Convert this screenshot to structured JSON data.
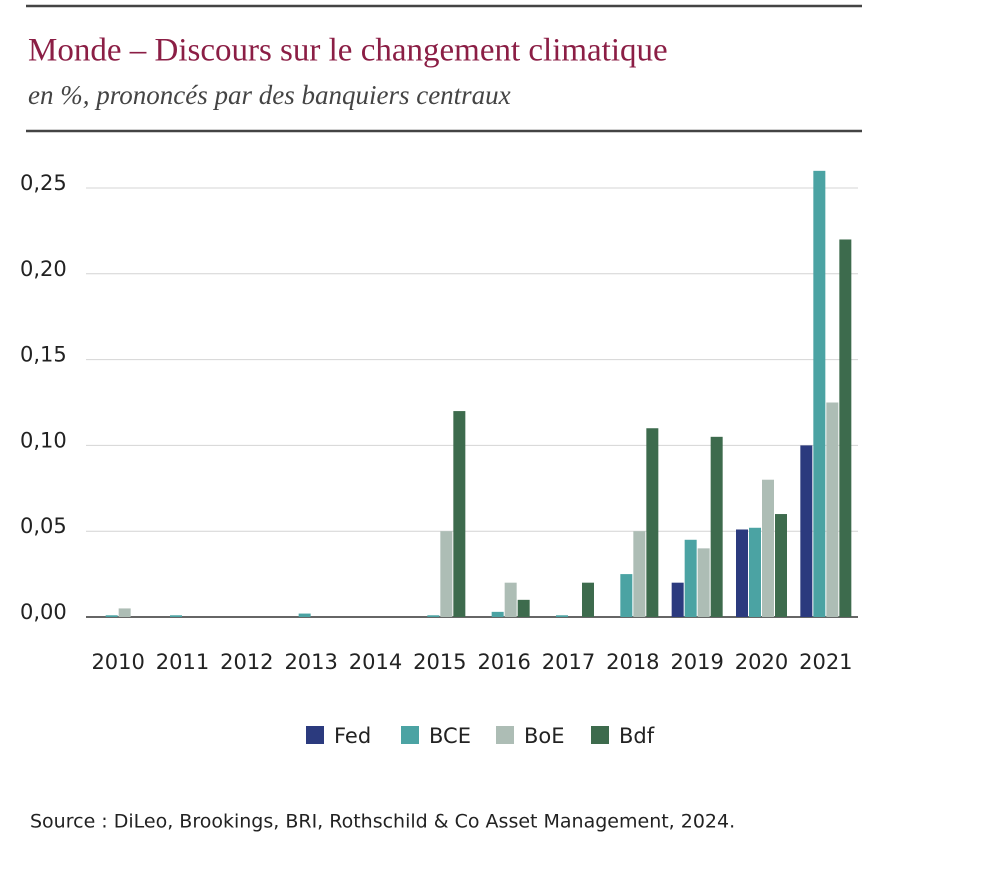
{
  "chart_data": {
    "type": "bar",
    "title": "Monde – Discours sur le changement climatique",
    "subtitle": "en %, prononcés par des banquiers centraux",
    "categories": [
      "2010",
      "2011",
      "2012",
      "2013",
      "2014",
      "2015",
      "2016",
      "2017",
      "2018",
      "2019",
      "2020",
      "2021"
    ],
    "series": [
      {
        "name": "Fed",
        "color": "#2b3a7e",
        "values": [
          0,
          0,
          0,
          0,
          0,
          0,
          0,
          0,
          0,
          0.02,
          0.051,
          0.1
        ]
      },
      {
        "name": "BCE",
        "color": "#4ba3a3",
        "values": [
          0.001,
          0.001,
          0,
          0.002,
          0,
          0.001,
          0.003,
          0.001,
          0.025,
          0.045,
          0.052,
          0.26
        ]
      },
      {
        "name": "BoE",
        "color": "#adbdb5",
        "values": [
          0.005,
          0,
          0,
          0,
          0,
          0.05,
          0.02,
          0,
          0.05,
          0.04,
          0.08,
          0.125
        ]
      },
      {
        "name": "Bdf",
        "color": "#3d6b4d",
        "values": [
          0,
          0,
          0,
          0,
          0,
          0.12,
          0.01,
          0.02,
          0.11,
          0.105,
          0.06,
          0.22
        ]
      }
    ],
    "ylim": [
      0,
      0.25
    ],
    "yticks": [
      {
        "value": 0,
        "label": "0,00"
      },
      {
        "value": 0.05,
        "label": "0,05"
      },
      {
        "value": 0.1,
        "label": "0,10"
      },
      {
        "value": 0.15,
        "label": "0,15"
      },
      {
        "value": 0.2,
        "label": "0,20"
      },
      {
        "value": 0.25,
        "label": "0,25"
      }
    ],
    "grid": true,
    "legend": "bottom",
    "source": "Source : DiLeo, Brookings, BRI, Rothschild & Co Asset Management, 2024."
  }
}
